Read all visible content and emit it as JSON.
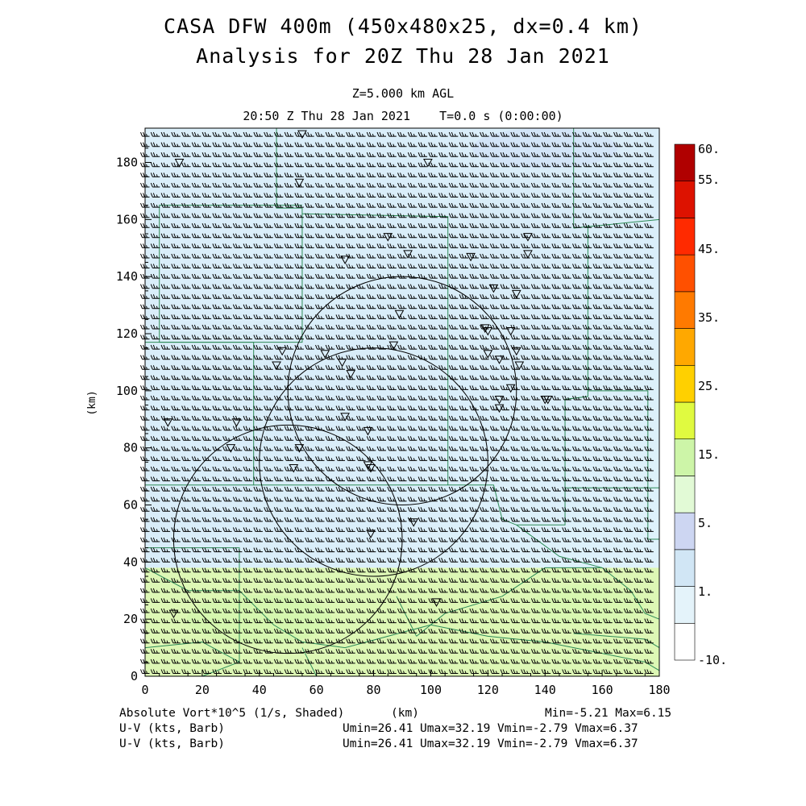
{
  "header": {
    "title": "CASA DFW 400m (450x480x25, dx=0.4 km)",
    "subtitle": "Analysis for 20Z Thu 28 Jan 2021",
    "level": "Z=5.000 km AGL",
    "time": "20:50 Z Thu 28 Jan 2021    T=0.0 s (0:00:00)"
  },
  "chart_data": {
    "type": "heatmap",
    "title": "CASA DFW 400m (450x480x25, dx=0.4 km)",
    "xlabel": "(km)",
    "ylabel": "(km)",
    "xlim": [
      0,
      180
    ],
    "ylim": [
      0,
      192
    ],
    "x_ticks": [
      "0",
      "20",
      "40",
      "60",
      "80",
      "100",
      "120",
      "140",
      "160",
      "180"
    ],
    "y_ticks": [
      "0",
      "20",
      "40",
      "60",
      "80",
      "100",
      "120",
      "140",
      "160",
      "180"
    ],
    "colorbar": {
      "labels": [
        "60.",
        "55.",
        "45.",
        "35.",
        "25.",
        "15.",
        "5.",
        "1.",
        "-10."
      ],
      "colors": [
        "#ffffff",
        "#e4f3fa",
        "#d1e6f5",
        "#cdd6f2",
        "#e2fad6",
        "#cdf5a8",
        "#e0fa40",
        "#ffd000",
        "#ffa800",
        "#ff7a00",
        "#ff5000",
        "#ff2a00",
        "#dd1200",
        "#b00000"
      ]
    },
    "field_regions": [
      {
        "name": "upper",
        "y_range": [
          38,
          192
        ],
        "value_approx": 0,
        "color": "#daeefa"
      },
      {
        "name": "lower",
        "y_range": [
          0,
          38
        ],
        "value_approx": 6,
        "color": "#ddf7b5"
      }
    ],
    "radar_sites": [
      {
        "x": 90,
        "y": 100,
        "r": 40
      },
      {
        "x": 80,
        "y": 75,
        "r": 40
      },
      {
        "x": 50,
        "y": 48,
        "r": 40
      }
    ],
    "wind_barbs": {
      "direction": "westerly",
      "u_range": [
        26.41,
        32.19
      ],
      "v_range": [
        -2.79,
        6.37
      ]
    }
  },
  "footer": {
    "var1": "Absolute Vort*10^5 (1/s, Shaded)",
    "xunit": "(km)",
    "minmax": "Min=-5.21 Max=6.15",
    "var2": "U-V (kts, Barb)",
    "stats2": "Umin=26.41 Umax=32.19 Vmin=-2.79 Vmax=6.37",
    "var3": "U-V (kts, Barb)",
    "stats3": "Umin=26.41 Umax=32.19 Vmin=-2.79 Vmax=6.37"
  }
}
